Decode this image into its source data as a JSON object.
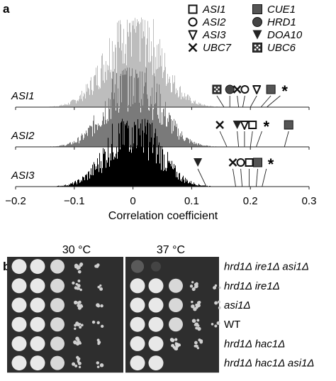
{
  "panel_a": {
    "label": "a",
    "legend": [
      {
        "symbol": "square-open",
        "label": "ASI1"
      },
      {
        "symbol": "circle-open",
        "label": "ASI2"
      },
      {
        "symbol": "triangle-open",
        "label": "ASI3"
      },
      {
        "symbol": "x-mark",
        "label": "UBC7"
      },
      {
        "symbol": "square-filled",
        "label": "CUE1"
      },
      {
        "symbol": "circle-filled",
        "label": "HRD1"
      },
      {
        "symbol": "triangle-filled",
        "label": "DOA10"
      },
      {
        "symbol": "square-dotted",
        "label": "UBC6"
      }
    ],
    "asterisk": "*",
    "colors": {
      "ASI1": "#bdbdbd",
      "ASI2": "#7a7a7a",
      "ASI3": "#000000"
    }
  },
  "chart_data": {
    "type": "histogram",
    "xlabel": "Correlation coefficient",
    "xlim": [
      -0.2,
      0.3
    ],
    "x_ticks": [
      "−0.2",
      "−0.1",
      "0",
      "0.1",
      "0.2",
      "0.3"
    ],
    "series": [
      {
        "name": "ASI1",
        "distribution_peak": 0.0,
        "markers": [
          {
            "gene": "UBC6",
            "x": 0.155
          },
          {
            "gene": "HRD1",
            "x": 0.165
          },
          {
            "gene": "UBC7",
            "x": 0.18
          },
          {
            "gene": "ASI2",
            "x": 0.187
          },
          {
            "gene": "ASI3",
            "x": 0.2
          },
          {
            "gene": "CUE1",
            "x": 0.218
          },
          {
            "gene": "asterisk",
            "x": 0.228
          }
        ]
      },
      {
        "name": "ASI2",
        "distribution_peak": 0.0,
        "markers": [
          {
            "gene": "UBC7",
            "x": 0.16
          },
          {
            "gene": "DOA10",
            "x": 0.18
          },
          {
            "gene": "ASI3",
            "x": 0.19
          },
          {
            "gene": "ASI1",
            "x": 0.2
          },
          {
            "gene": "asterisk",
            "x": 0.21
          },
          {
            "gene": "CUE1",
            "x": 0.258
          }
        ]
      },
      {
        "name": "ASI3",
        "distribution_peak": 0.0,
        "markers": [
          {
            "gene": "DOA10",
            "x": 0.125
          },
          {
            "gene": "UBC7",
            "x": 0.175
          },
          {
            "gene": "ASI2",
            "x": 0.186
          },
          {
            "gene": "ASI1",
            "x": 0.198
          },
          {
            "gene": "CUE1",
            "x": 0.21
          },
          {
            "gene": "asterisk",
            "x": 0.22
          }
        ]
      }
    ]
  },
  "panel_b": {
    "label": "b",
    "temperatures": [
      "30 °C",
      "37 °C"
    ],
    "strains": [
      "hrd1Δ ire1Δ asi1Δ",
      "hrd1Δ ire1Δ",
      "asi1Δ",
      "WT",
      "hrd1Δ hac1Δ",
      "hrd1Δ hac1Δ asi1Δ"
    ],
    "growth_30": [
      5,
      5,
      5,
      5,
      5,
      5
    ],
    "growth_37": [
      0,
      4,
      5,
      5,
      3,
      1
    ]
  }
}
